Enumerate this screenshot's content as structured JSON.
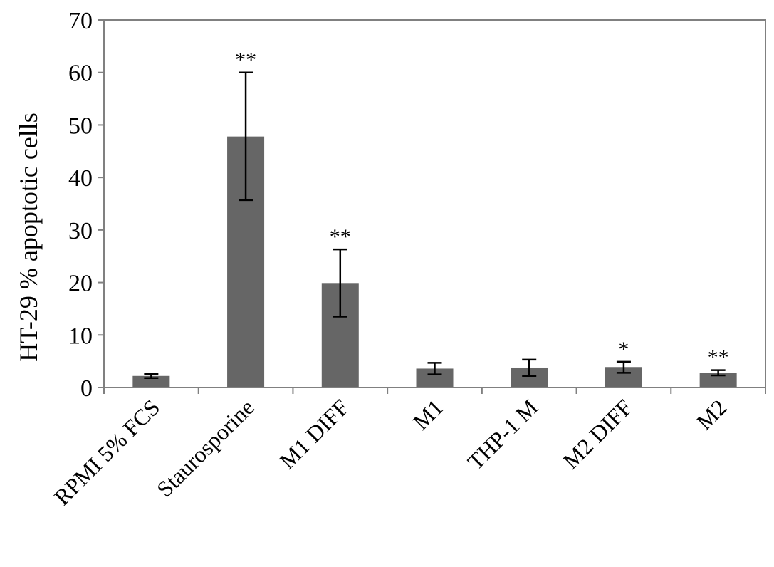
{
  "chart_data": {
    "type": "bar",
    "ylabel": "HT-29 % apoptotic cells",
    "xlabel": "",
    "ylim": [
      0,
      70
    ],
    "yticks": [
      "0",
      "10",
      "20",
      "30",
      "40",
      "50",
      "60",
      "70"
    ],
    "grid": false,
    "categories": [
      "RPMI 5% FCS",
      "Staurosporine",
      "M1 DIFF",
      "M1",
      "THP-1 M",
      "M2 DIFF",
      "M2"
    ],
    "values": [
      2.2,
      47.8,
      19.9,
      3.6,
      3.8,
      3.9,
      2.8
    ],
    "error_low": [
      1.8,
      35.7,
      13.5,
      2.5,
      2.2,
      2.8,
      2.3
    ],
    "error_high": [
      2.6,
      60.0,
      26.3,
      4.7,
      5.3,
      4.9,
      3.3
    ],
    "significance": [
      "",
      "**",
      "**",
      "",
      "",
      "*",
      "**"
    ],
    "colors": {
      "bar": "#666666",
      "axis": "#808080",
      "error": "#000000"
    }
  }
}
